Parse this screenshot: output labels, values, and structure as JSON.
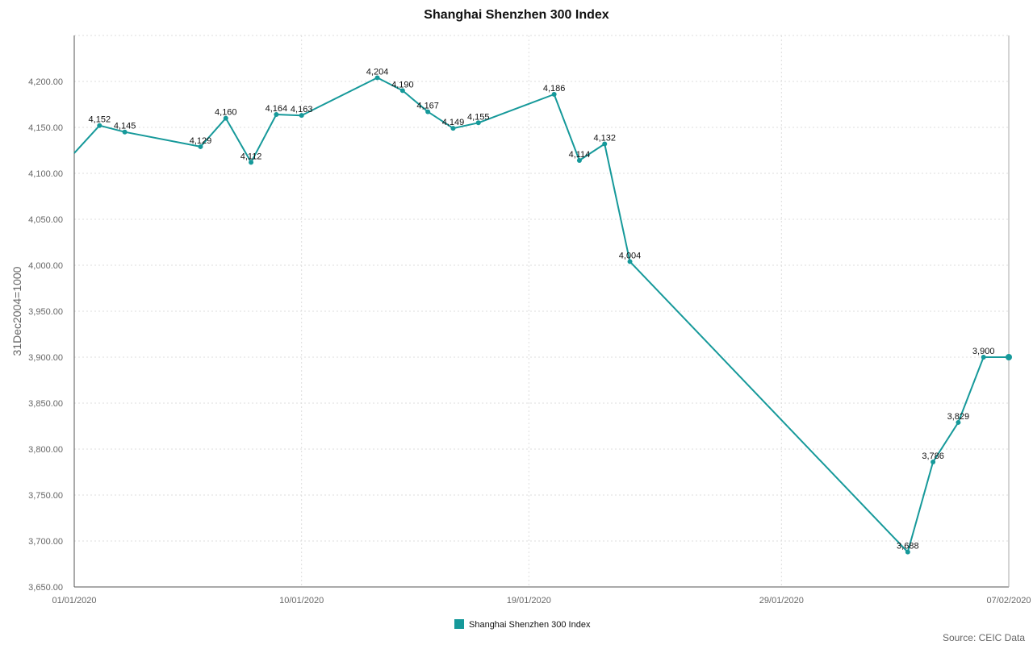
{
  "chart_data": {
    "type": "line",
    "title": "Shanghai Shenzhen 300 Index",
    "ylabel": "31Dec2004=1000",
    "xlabel": "",
    "x_ticks": [
      "01/01/2020",
      "10/01/2020",
      "19/01/2020",
      "29/01/2020",
      "07/02/2020"
    ],
    "x_tick_days": [
      0,
      9,
      18,
      28,
      37
    ],
    "xlim_days": [
      0,
      37
    ],
    "ylim": [
      3650,
      4250
    ],
    "y_ticks": [
      "3,650.00",
      "3,700.00",
      "3,750.00",
      "3,800.00",
      "3,850.00",
      "3,900.00",
      "3,950.00",
      "4,000.00",
      "4,050.00",
      "4,100.00",
      "4,150.00",
      "4,200.00"
    ],
    "y_tick_values": [
      3650,
      3700,
      3750,
      3800,
      3850,
      3900,
      3950,
      4000,
      4050,
      4100,
      4150,
      4200
    ],
    "grid": true,
    "legend_position": "bottom",
    "series": [
      {
        "name": "Shanghai Shenzhen 300 Index",
        "color": "#16999a",
        "points": [
          {
            "x": 0,
            "y": 4122,
            "label": ""
          },
          {
            "x": 1,
            "y": 4152,
            "label": "4,152"
          },
          {
            "x": 2,
            "y": 4145,
            "label": "4,145"
          },
          {
            "x": 5,
            "y": 4129,
            "label": "4,129"
          },
          {
            "x": 6,
            "y": 4160,
            "label": "4,160"
          },
          {
            "x": 7,
            "y": 4112,
            "label": "4,112"
          },
          {
            "x": 8,
            "y": 4164,
            "label": "4,164"
          },
          {
            "x": 9,
            "y": 4163,
            "label": "4,163"
          },
          {
            "x": 12,
            "y": 4204,
            "label": "4,204"
          },
          {
            "x": 13,
            "y": 4190,
            "label": "4,190"
          },
          {
            "x": 14,
            "y": 4167,
            "label": "4,167"
          },
          {
            "x": 15,
            "y": 4149,
            "label": "4,149"
          },
          {
            "x": 16,
            "y": 4155,
            "label": "4,155"
          },
          {
            "x": 19,
            "y": 4186,
            "label": "4,186"
          },
          {
            "x": 20,
            "y": 4114,
            "label": "4,114"
          },
          {
            "x": 21,
            "y": 4132,
            "label": "4,132"
          },
          {
            "x": 22,
            "y": 4004,
            "label": "4,004"
          },
          {
            "x": 33,
            "y": 3688,
            "label": "3,688"
          },
          {
            "x": 34,
            "y": 3786,
            "label": "3,786"
          },
          {
            "x": 35,
            "y": 3829,
            "label": "3,829"
          },
          {
            "x": 36,
            "y": 3900,
            "label": "3,900"
          },
          {
            "x": 37,
            "y": 3900,
            "label": ""
          }
        ]
      }
    ],
    "source": "Source: CEIC Data"
  }
}
